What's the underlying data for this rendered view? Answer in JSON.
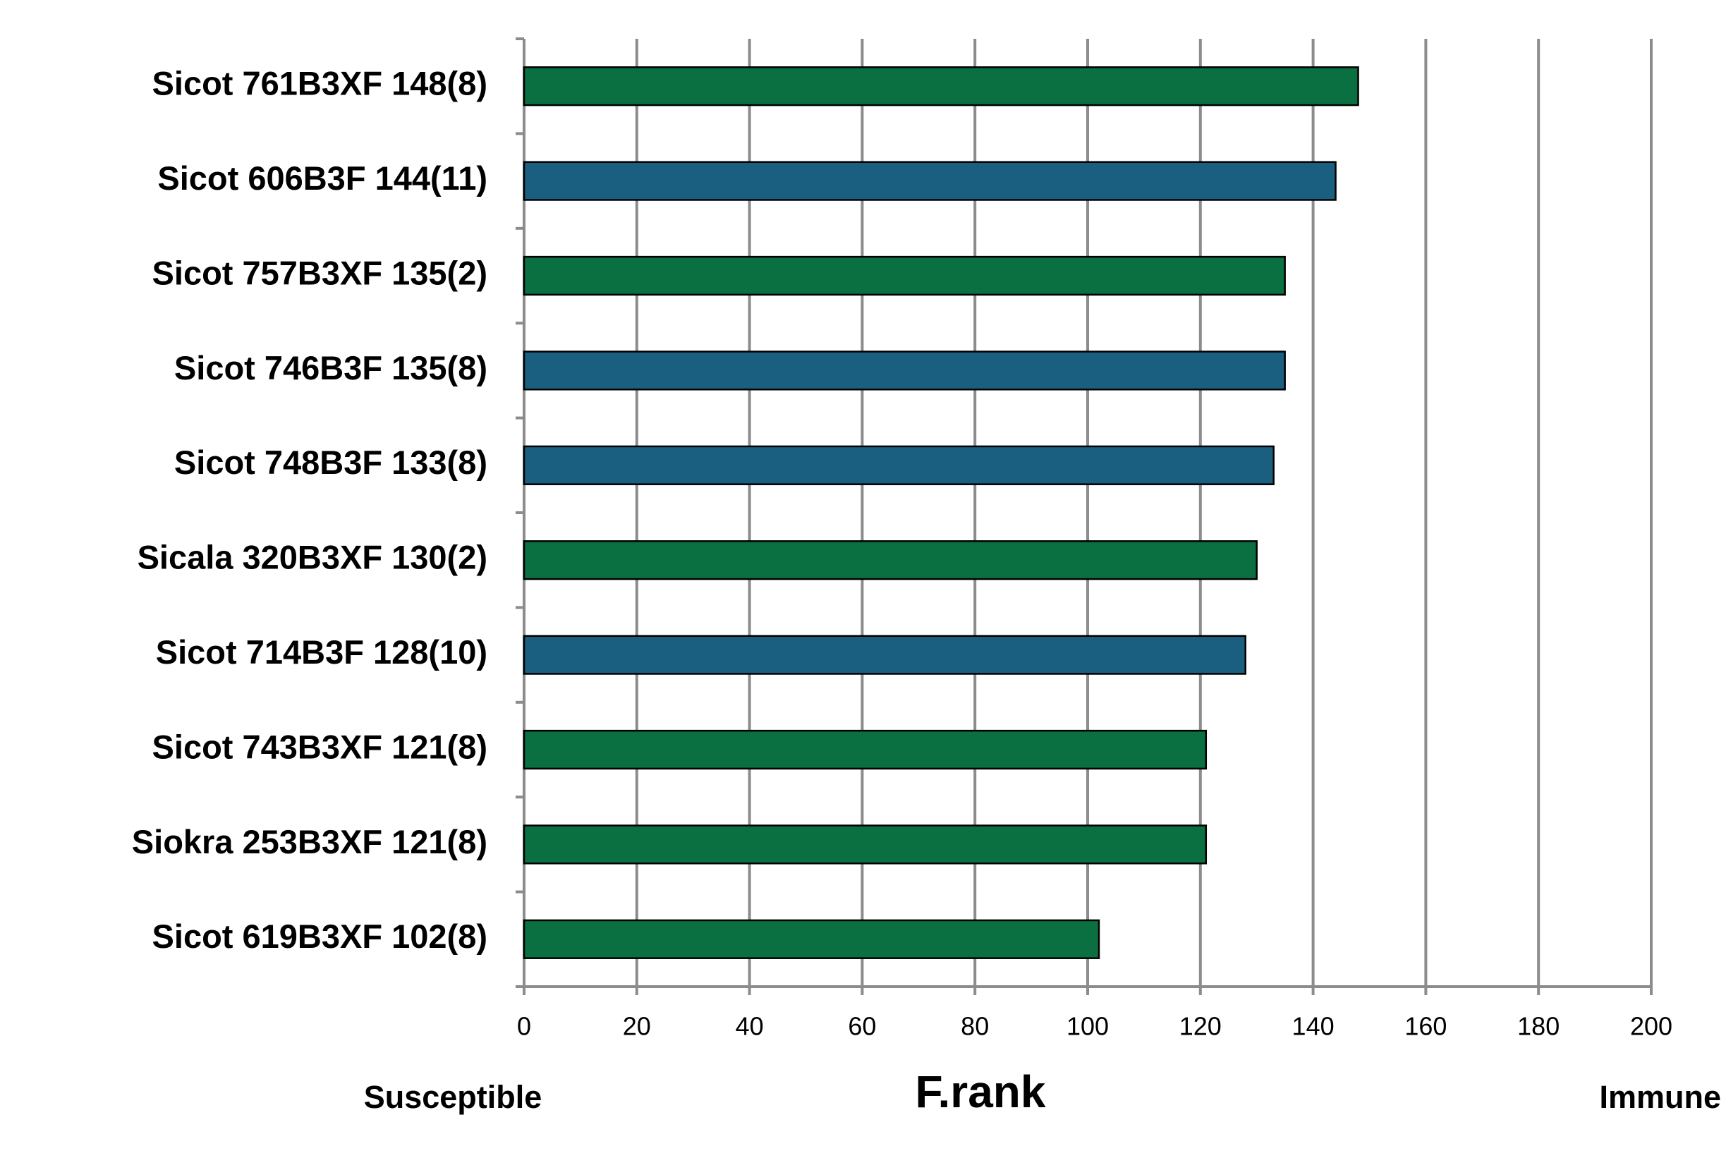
{
  "chart_data": {
    "type": "barh",
    "categories": [
      "Sicot 761B3XF 148(8)",
      "Sicot 606B3F 144(11)",
      "Sicot 757B3XF 135(2)",
      "Sicot 746B3F 135(8)",
      "Sicot 748B3F 133(8)",
      "Sicala 320B3XF 130(2)",
      "Sicot 714B3F 128(10)",
      "Sicot 743B3XF 121(8)",
      "Siokra 253B3XF 121(8)",
      "Sicot 619B3XF 102(8)"
    ],
    "values": [
      148,
      144,
      135,
      135,
      133,
      130,
      128,
      121,
      121,
      102
    ],
    "colors": [
      "#0b7041",
      "#1a5f80",
      "#0b7041",
      "#1a5f80",
      "#1a5f80",
      "#0b7041",
      "#1a5f80",
      "#0b7041",
      "#0b7041",
      "#0b7041"
    ],
    "xlabel": "F.rank",
    "annotations": [
      "Susceptible",
      "Immune"
    ],
    "xlim": [
      0,
      200
    ],
    "xticks": [
      0,
      20,
      40,
      60,
      80,
      100,
      120,
      140,
      160,
      180,
      200
    ],
    "grid": true
  }
}
